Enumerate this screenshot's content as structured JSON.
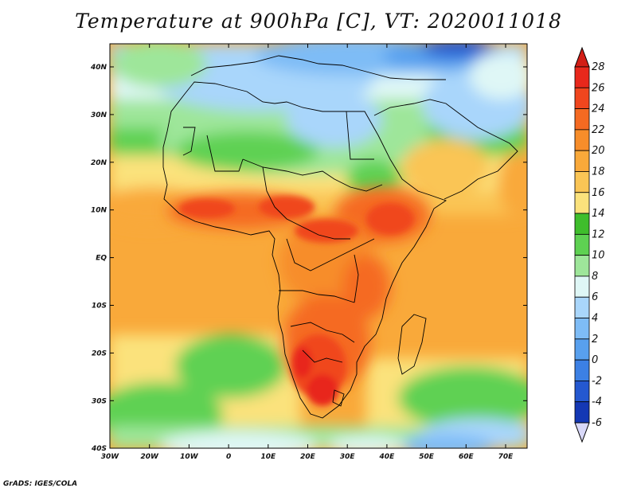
{
  "title": "Temperature at 900hPa [C], VT: 2020011018",
  "footer": "GrADS: IGES/COLA",
  "map": {
    "lon_range": [
      -30,
      76
    ],
    "lat_range": [
      -40,
      45
    ],
    "lon_ticks": [
      "30W",
      "20W",
      "10W",
      "0",
      "10E",
      "20E",
      "30E",
      "40E",
      "50E",
      "60E",
      "70E"
    ],
    "lat_ticks": [
      "40N",
      "30N",
      "20N",
      "10N",
      "EQ",
      "10S",
      "20S",
      "30S",
      "40S"
    ]
  },
  "colorbar": {
    "labels": [
      "28",
      "26",
      "24",
      "22",
      "20",
      "18",
      "16",
      "14",
      "12",
      "10",
      "8",
      "6",
      "4",
      "2",
      "0",
      "-2",
      "-4",
      "-6"
    ],
    "colors": [
      "#e8281c",
      "#f0461e",
      "#f56a22",
      "#f78d2a",
      "#f9a93a",
      "#fac555",
      "#fbe27c",
      "#3fbe2c",
      "#5ed152",
      "#9ee69a",
      "#dff7f6",
      "#a9d6fb",
      "#7ebcf6",
      "#58a0ee",
      "#3c80e4",
      "#2458d0",
      "#1438b4",
      "#0c1c82"
    ],
    "top_arrow_color": "#d21e16",
    "bottom_arrow_color": "#d8d8f8"
  }
}
